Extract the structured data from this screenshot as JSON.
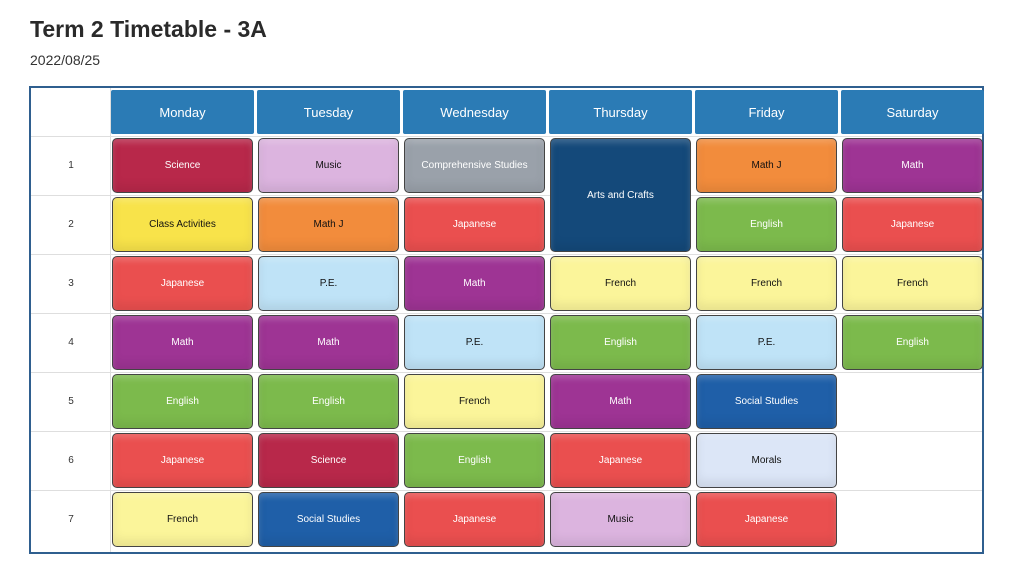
{
  "title": "Term 2 Timetable - 3A",
  "date": "2022/08/25",
  "days": [
    "Monday",
    "Tuesday",
    "Wednesday",
    "Thursday",
    "Friday",
    "Saturday"
  ],
  "periods": [
    "1",
    "2",
    "3",
    "4",
    "5",
    "6",
    "7"
  ],
  "subject_colors": {
    "Science": "#b8284a",
    "Music": "#dcb4df",
    "Comprehensive Studies": "#9aa1aa",
    "Arts and Crafts": "#14497a",
    "Math J": "#f28c3c",
    "Math": "#9e3494",
    "Class Activities": "#f8e34a",
    "Japanese": "#ea4f4f",
    "English": "#7cba4c",
    "P.E.": "#bfe3f7",
    "French": "#fbf59a",
    "Social Studies": "#1f5fa8",
    "Morals": "#dce6f7"
  },
  "dark_text_subjects": [
    "Music",
    "Math J",
    "Class Activities",
    "P.E.",
    "French",
    "Morals"
  ],
  "schedule": [
    [
      {
        "label": "Science",
        "start": 1,
        "span": 1
      },
      {
        "label": "Class Activities",
        "start": 2,
        "span": 1
      },
      {
        "label": "Japanese",
        "start": 3,
        "span": 1
      },
      {
        "label": "Math",
        "start": 4,
        "span": 1
      },
      {
        "label": "English",
        "start": 5,
        "span": 1
      },
      {
        "label": "Japanese",
        "start": 6,
        "span": 1
      },
      {
        "label": "French",
        "start": 7,
        "span": 1
      }
    ],
    [
      {
        "label": "Music",
        "start": 1,
        "span": 1
      },
      {
        "label": "Math J",
        "start": 2,
        "span": 1
      },
      {
        "label": "P.E.",
        "start": 3,
        "span": 1
      },
      {
        "label": "Math",
        "start": 4,
        "span": 1
      },
      {
        "label": "English",
        "start": 5,
        "span": 1
      },
      {
        "label": "Science",
        "start": 6,
        "span": 1
      },
      {
        "label": "Social Studies",
        "start": 7,
        "span": 1
      }
    ],
    [
      {
        "label": "Comprehensive Studies",
        "start": 1,
        "span": 1
      },
      {
        "label": "Japanese",
        "start": 2,
        "span": 1
      },
      {
        "label": "Math",
        "start": 3,
        "span": 1
      },
      {
        "label": "P.E.",
        "start": 4,
        "span": 1
      },
      {
        "label": "French",
        "start": 5,
        "span": 1
      },
      {
        "label": "English",
        "start": 6,
        "span": 1
      },
      {
        "label": "Japanese",
        "start": 7,
        "span": 1
      }
    ],
    [
      {
        "label": "Arts and Crafts",
        "start": 1,
        "span": 2
      },
      {
        "label": "French",
        "start": 3,
        "span": 1
      },
      {
        "label": "English",
        "start": 4,
        "span": 1
      },
      {
        "label": "Math",
        "start": 5,
        "span": 1
      },
      {
        "label": "Japanese",
        "start": 6,
        "span": 1
      },
      {
        "label": "Music",
        "start": 7,
        "span": 1
      }
    ],
    [
      {
        "label": "Math J",
        "start": 1,
        "span": 1
      },
      {
        "label": "English",
        "start": 2,
        "span": 1
      },
      {
        "label": "French",
        "start": 3,
        "span": 1
      },
      {
        "label": "P.E.",
        "start": 4,
        "span": 1
      },
      {
        "label": "Social Studies",
        "start": 5,
        "span": 1
      },
      {
        "label": "Morals",
        "start": 6,
        "span": 1
      },
      {
        "label": "Japanese",
        "start": 7,
        "span": 1
      }
    ],
    [
      {
        "label": "Math",
        "start": 1,
        "span": 1
      },
      {
        "label": "Japanese",
        "start": 2,
        "span": 1
      },
      {
        "label": "French",
        "start": 3,
        "span": 1
      },
      {
        "label": "English",
        "start": 4,
        "span": 1
      }
    ]
  ]
}
